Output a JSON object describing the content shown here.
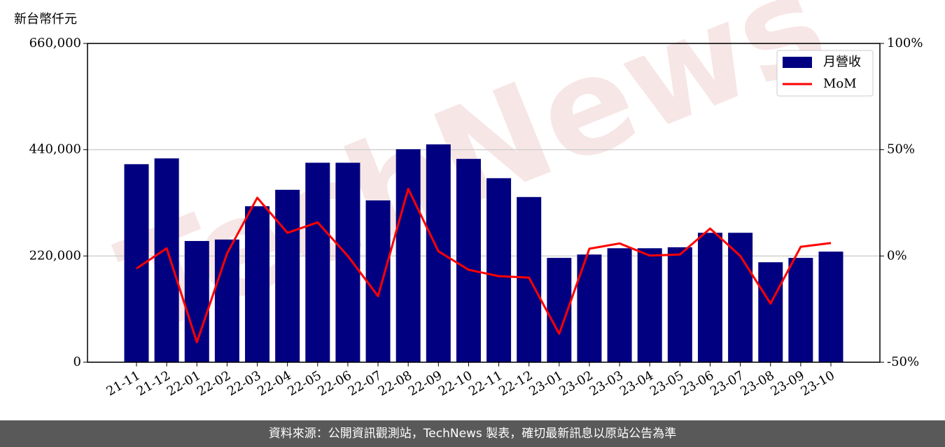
{
  "chart_data": {
    "type": "bar-line",
    "y_label": "新台幣仟元",
    "watermark": "TechNews",
    "categories": [
      "21-11",
      "21-12",
      "22-01",
      "22-02",
      "22-03",
      "22-04",
      "22-05",
      "22-06",
      "22-07",
      "22-08",
      "22-09",
      "22-10",
      "22-11",
      "22-12",
      "23-01",
      "23-02",
      "23-03",
      "23-04",
      "23-05",
      "23-06",
      "23-07",
      "23-08",
      "23-09",
      "23-10"
    ],
    "series": [
      {
        "name": "月營收",
        "type": "bar",
        "color": "#000080",
        "values": [
          410000,
          422000,
          251000,
          254000,
          323000,
          357000,
          413000,
          413000,
          335000,
          441000,
          451000,
          421000,
          381000,
          342000,
          216000,
          223000,
          236000,
          236000,
          238000,
          268000,
          268000,
          207000,
          216000,
          229000
        ]
      },
      {
        "name": "MoM",
        "type": "line",
        "axis": "y2",
        "color": "#ff0000",
        "values": [
          -5.9,
          3.6,
          -40.6,
          1.2,
          27.4,
          10.9,
          15.8,
          0,
          -18.9,
          31.6,
          2.2,
          -6.5,
          -9.5,
          -10.2,
          -36.6,
          3.4,
          5.9,
          0.2,
          0.7,
          12.9,
          0,
          -22.4,
          4.3,
          6.1
        ]
      }
    ],
    "ylim": [
      0,
      660000
    ],
    "yticks": [
      0,
      {
        "value": 220000,
        "label": "220,000"
      },
      {
        "value": 440000,
        "label": "440,000"
      },
      {
        "value": 660000,
        "label": "660,000"
      }
    ],
    "y2lim": [
      -50,
      100
    ],
    "y2ticks": [
      {
        "value": -50,
        "label": "-50%"
      },
      {
        "value": 0,
        "label": "0%"
      },
      {
        "value": 50,
        "label": "50%"
      },
      {
        "value": 100,
        "label": "100%"
      }
    ],
    "grid": true,
    "legend": "upper right"
  },
  "footer": "資料來源：公開資訊觀測站，TechNews 製表，確切最新訊息以原站公告為準"
}
